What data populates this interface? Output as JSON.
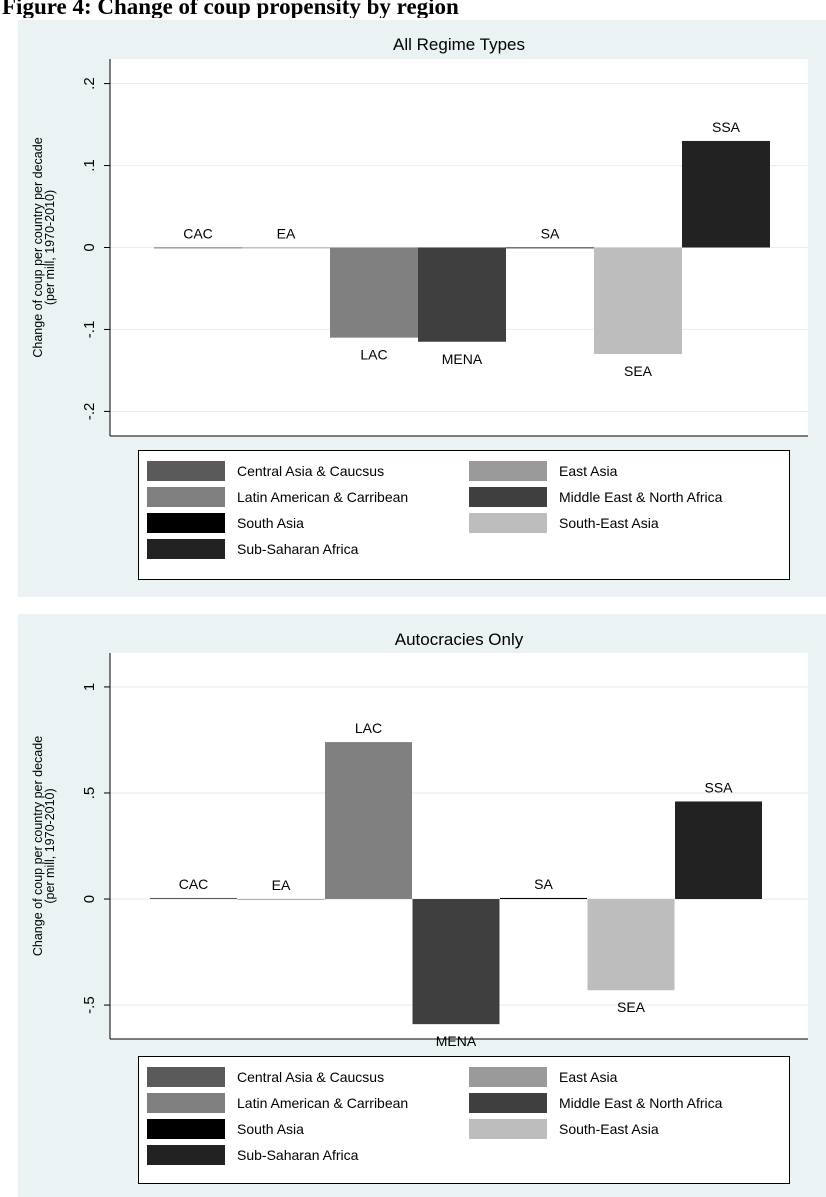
{
  "heading": "Figure 4: Change of coup propensity by region",
  "legend": {
    "entries": [
      {
        "key": "CAC",
        "label": "Central Asia & Caucsus",
        "color": "#5a5a5a"
      },
      {
        "key": "EA",
        "label": "East Asia",
        "color": "#9a9a9a"
      },
      {
        "key": "LAC",
        "label": "Latin American & Carribean",
        "color": "#808080"
      },
      {
        "key": "MENA",
        "label": "Middle East & North Africa",
        "color": "#3f3f3f"
      },
      {
        "key": "SA",
        "label": "South Asia",
        "color": "#000000"
      },
      {
        "key": "SEA",
        "label": "South-East Asia",
        "color": "#bdbdbd"
      },
      {
        "key": "SSA",
        "label": "Sub-Saharan Africa",
        "color": "#222222"
      }
    ]
  },
  "chart_data": [
    {
      "type": "bar",
      "title": "All Regime Types",
      "ylabel": [
        "Change of coup per country per decade",
        "(per mill, 1970-2010)"
      ],
      "categories": [
        "CAC",
        "EA",
        "LAC",
        "MENA",
        "SA",
        "SEA",
        "SSA"
      ],
      "values": [
        0,
        0,
        -0.11,
        -0.115,
        0,
        -0.13,
        0.13
      ],
      "ylim": [
        -0.23,
        0.23
      ],
      "yticks": [
        -0.2,
        -0.1,
        0,
        0.1,
        0.2
      ],
      "ytick_labels": [
        "-.2",
        "-.1",
        "0",
        ".1",
        ".2"
      ],
      "grid": true,
      "legend_position": "bottom"
    },
    {
      "type": "bar",
      "title": "Autocracies Only",
      "ylabel": [
        "Change of coup per country per decade",
        "(per mill, 1970-2010)"
      ],
      "categories": [
        "CAC",
        "EA",
        "LAC",
        "MENA",
        "SA",
        "SEA",
        "SSA"
      ],
      "values": [
        0.005,
        0,
        0.74,
        -0.59,
        0.005,
        -0.43,
        0.46
      ],
      "ylim": [
        -0.66,
        1.16
      ],
      "yticks": [
        -0.5,
        0,
        0.5,
        1
      ],
      "ytick_labels": [
        "-.5",
        "0",
        ".5",
        "1"
      ],
      "grid": true,
      "legend_position": "bottom"
    }
  ]
}
